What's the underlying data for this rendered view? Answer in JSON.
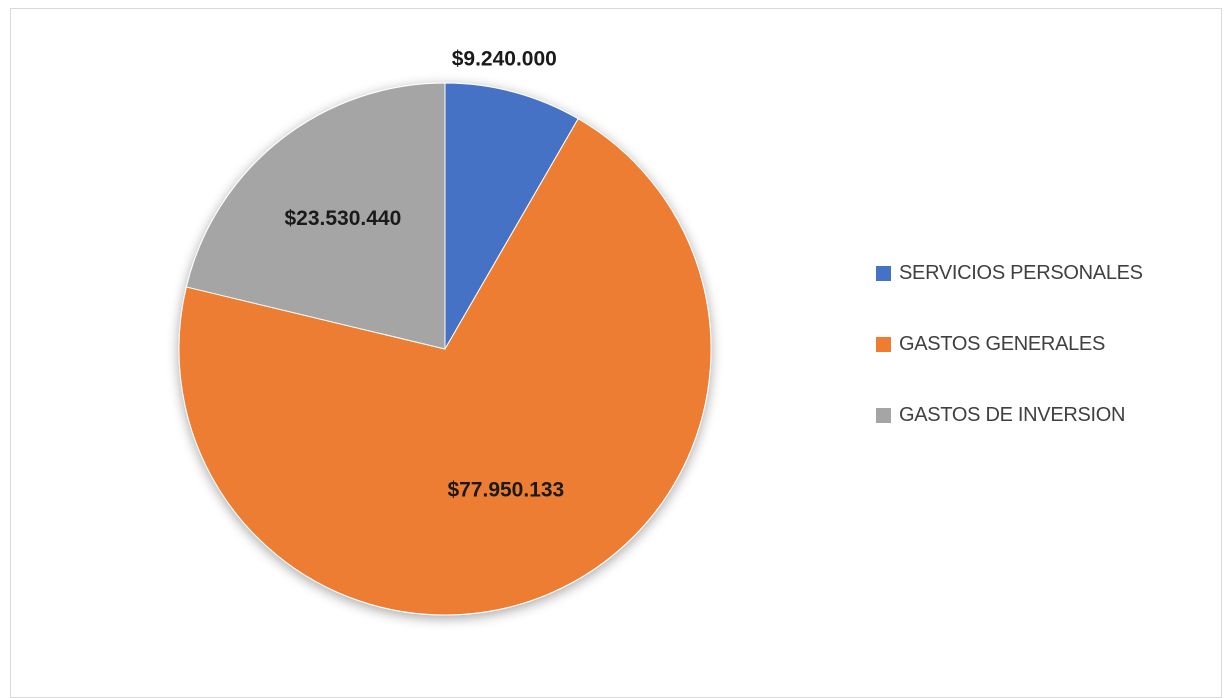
{
  "chart_data": {
    "type": "pie",
    "categories": [
      "SERVICIOS PERSONALES",
      "GASTOS GENERALES",
      "GASTOS DE INVERSION"
    ],
    "values": [
      9240000,
      77950133,
      23530440
    ],
    "value_labels": [
      "$9.240.000",
      "$77.950.133",
      "$23.530.440"
    ],
    "colors": [
      "#4472c4",
      "#ed7d31",
      "#a5a5a5"
    ],
    "start_angle_deg": 0,
    "direction": "clockwise",
    "legend_position": "right"
  }
}
